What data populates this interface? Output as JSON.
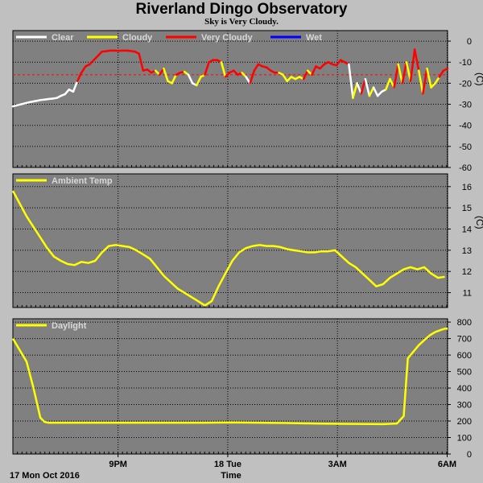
{
  "header": {
    "title": "Riverland Dingo Observatory",
    "subtitle": "Sky is Very Cloudy."
  },
  "colors": {
    "background": "#c0c0c0",
    "plot_bg": "#808080",
    "grid": "#000000",
    "clear": "#ffffff",
    "cloudy": "#ffff00",
    "very_cloudy": "#ff0000",
    "wet": "#0000ff",
    "threshold": "#ff0000"
  },
  "footer": {
    "date_label": "17 Mon Oct 2016",
    "time_label": "Time"
  },
  "chart_data": [
    {
      "type": "line",
      "name": "sky",
      "ylim": [
        -60,
        5
      ],
      "yticks": [
        0,
        -10,
        -20,
        -30,
        -40,
        -50,
        -60
      ],
      "ylabel_unit": "(C)",
      "threshold": -16,
      "legend": [
        {
          "label": "Clear",
          "color": "#ffffff"
        },
        {
          "label": "Cloudy",
          "color": "#ffff00"
        },
        {
          "label": "Very Cloudy",
          "color": "#ff0000"
        },
        {
          "label": "Wet",
          "color": "#0000ff"
        }
      ],
      "x": [
        0,
        0.3,
        0.6,
        0.9,
        1.2,
        1.4,
        1.6,
        1.8,
        2.0,
        2.3,
        2.6,
        2.9,
        3.2,
        3.5,
        3.8,
        4.1,
        4.4,
        4.7,
        5.0,
        5.3,
        5.6,
        5.9,
        6.2,
        6.5,
        6.8,
        7.1,
        7.4,
        7.7,
        8.0,
        8.3,
        8.6,
        8.9,
        9.2,
        9.5,
        9.8,
        10.1,
        10.4,
        10.7,
        11.0,
        11.3,
        11.6,
        11.9,
        12.2,
        12.5,
        12.8,
        13.1,
        13.4,
        13.7,
        14.0,
        14.3,
        14.6,
        14.9,
        15.2,
        15.5,
        15.8,
        16.1,
        16.4,
        16.7,
        17.0,
        17.3,
        17.6,
        17.9,
        18.2,
        18.5,
        18.8,
        19.1,
        19.4,
        19.7,
        20.0,
        20.3,
        20.6,
        20.9,
        21.2,
        21.5,
        21.8,
        22.1,
        22.4,
        22.7,
        23.0,
        23.3,
        23.6,
        23.9,
        24.2,
        24.5,
        24.8,
        25.1,
        25.4,
        25.7,
        26.0,
        26.3,
        26.6,
        26.9,
        27.2,
        27.5,
        27.8,
        28.1,
        28.4,
        28.7,
        29.0,
        29.3,
        29.6,
        29.9,
        30.2,
        30.5,
        30.8,
        31.1,
        31.4,
        31.7
      ],
      "series": [
        {
          "values": [
            -31,
            -30.5,
            -30,
            -29.5,
            -29,
            -28.8,
            -28.5,
            -28.3,
            -28,
            -27.8,
            -27.5,
            -27.3,
            -27,
            -26,
            -25.2,
            -23,
            -24,
            -19,
            -15,
            -12,
            -11,
            -9,
            -7,
            -5,
            -4.8,
            -4.5,
            -4.5,
            -4.6,
            -4.5,
            -4.5,
            -4.7,
            -5,
            -6,
            -14,
            -13.5,
            -15,
            -14,
            -16,
            -13,
            -19,
            -20,
            -16,
            -15,
            -14.5,
            -16,
            -20,
            -21,
            -17,
            -16,
            -10,
            -9,
            -9,
            -10,
            -17,
            -15,
            -14,
            -16,
            -15,
            -17,
            -20,
            -14,
            -11,
            -12,
            -12.5,
            -14,
            -15,
            -15,
            -16,
            -19,
            -17,
            -18,
            -17,
            -18,
            -14,
            -16,
            -12,
            -13,
            -11,
            -10,
            -11,
            -11.5,
            -9,
            -10,
            -11,
            -27,
            -20,
            -25,
            -18,
            -26,
            -22,
            -26,
            -24,
            -23,
            -18,
            -22,
            -11,
            -20,
            -10,
            -19,
            -4,
            -14,
            -25,
            -13,
            -22,
            -20,
            -17,
            -14,
            -13
          ],
          "states": [
            "clear",
            "clear",
            "clear",
            "clear",
            "clear",
            "clear",
            "clear",
            "clear",
            "clear",
            "clear",
            "clear",
            "clear",
            "clear",
            "clear",
            "clear",
            "clear",
            "clear",
            "clear",
            "very",
            "very",
            "very",
            "very",
            "very",
            "very",
            "very",
            "very",
            "very",
            "very",
            "very",
            "very",
            "very",
            "very",
            "very",
            "very",
            "very",
            "very",
            "very",
            "cloudy",
            "very",
            "cloudy",
            "cloudy",
            "cloudy",
            "very",
            "very",
            "cloudy",
            "clear",
            "clear",
            "cloudy",
            "cloudy",
            "very",
            "very",
            "very",
            "very",
            "cloudy",
            "very",
            "very",
            "very",
            "very",
            "cloudy",
            "clear",
            "very",
            "very",
            "very",
            "very",
            "very",
            "very",
            "very",
            "cloudy",
            "cloudy",
            "cloudy",
            "cloudy",
            "cloudy",
            "cloudy",
            "very",
            "cloudy",
            "very",
            "very",
            "very",
            "very",
            "very",
            "very",
            "very",
            "very",
            "very",
            "clear",
            "cloudy",
            "clear",
            "very",
            "clear",
            "cloudy",
            "clear",
            "clear",
            "clear",
            "cloudy",
            "cloudy",
            "very",
            "cloudy",
            "very",
            "cloudy",
            "very",
            "very",
            "cloudy",
            "very",
            "cloudy",
            "cloudy",
            "cloudy",
            "very",
            "very"
          ]
        }
      ]
    },
    {
      "type": "line",
      "name": "ambient",
      "ylim": [
        10.3,
        16.6
      ],
      "yticks": [
        16,
        15,
        14,
        13,
        12,
        11
      ],
      "ylabel_unit": "(C)",
      "legend": [
        {
          "label": "Ambient Temp",
          "color": "#ffff00"
        }
      ],
      "x": [
        0,
        0.5,
        1,
        1.5,
        2,
        2.5,
        3,
        3.5,
        4,
        4.5,
        5,
        5.5,
        6,
        6.5,
        7,
        7.5,
        8,
        8.5,
        9,
        9.5,
        10,
        10.5,
        11,
        11.5,
        12,
        12.5,
        13,
        13.5,
        14,
        14.5,
        15,
        15.5,
        16,
        16.5,
        17,
        17.5,
        18,
        18.5,
        19,
        19.5,
        20,
        20.5,
        21,
        21.5,
        22,
        22.5,
        23,
        23.5,
        24,
        24.5,
        25,
        25.5,
        26,
        26.5,
        27,
        27.5,
        28,
        28.5,
        29,
        29.5,
        30,
        30.5,
        31,
        31.5
      ],
      "series": [
        {
          "values": [
            15.8,
            15.2,
            14.6,
            14.1,
            13.6,
            13.1,
            12.7,
            12.5,
            12.35,
            12.3,
            12.45,
            12.4,
            12.5,
            12.9,
            13.2,
            13.25,
            13.2,
            13.15,
            13.0,
            12.8,
            12.6,
            12.2,
            11.8,
            11.5,
            11.2,
            11.0,
            10.8,
            10.6,
            10.4,
            10.6,
            11.3,
            11.9,
            12.5,
            12.9,
            13.1,
            13.2,
            13.25,
            13.2,
            13.2,
            13.15,
            13.05,
            13.0,
            12.95,
            12.9,
            12.9,
            12.95,
            12.95,
            13.0,
            12.7,
            12.4,
            12.2,
            11.9,
            11.6,
            11.3,
            11.4,
            11.7,
            11.9,
            12.1,
            12.2,
            12.1,
            12.2,
            11.9,
            11.7,
            11.75
          ]
        }
      ]
    },
    {
      "type": "line",
      "name": "daylight",
      "ylim": [
        0,
        820
      ],
      "yticks": [
        800,
        700,
        600,
        500,
        400,
        300,
        200,
        100,
        0
      ],
      "legend": [
        {
          "label": "Daylight",
          "color": "#ffff00"
        }
      ],
      "x": [
        0,
        0.5,
        1,
        1.5,
        2,
        2.3,
        2.6,
        3,
        4,
        6,
        8,
        10,
        12,
        14,
        16,
        18,
        20,
        22,
        24,
        26,
        27,
        28,
        28.5,
        28.8,
        29.2,
        29.6,
        30,
        30.4,
        30.8,
        31.2,
        31.5,
        31.7
      ],
      "series": [
        {
          "values": [
            700,
            630,
            560,
            400,
            220,
            195,
            190,
            190,
            190,
            190,
            190,
            190,
            190,
            190,
            192,
            190,
            188,
            185,
            183,
            182,
            181,
            185,
            230,
            580,
            620,
            660,
            690,
            720,
            740,
            752,
            760,
            760
          ]
        }
      ]
    }
  ],
  "xaxis": {
    "range": [
      0,
      31.7
    ],
    "ticks": [
      {
        "x": 7.67,
        "label": "9PM"
      },
      {
        "x": 15.67,
        "label": "18 Tue"
      },
      {
        "x": 23.67,
        "label": "3AM"
      },
      {
        "x": 31.67,
        "label": "6AM"
      }
    ],
    "grid": [
      7.67,
      15.67,
      23.67,
      31.67
    ],
    "minor_step": 0.333
  }
}
